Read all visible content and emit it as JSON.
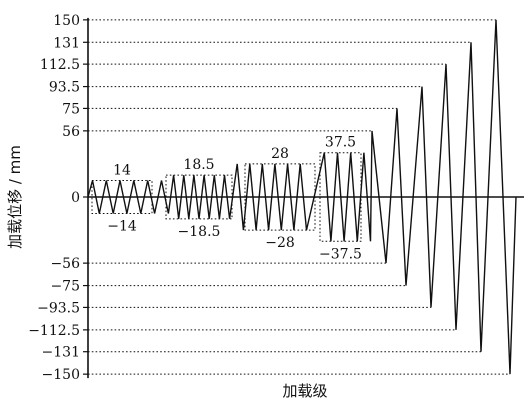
{
  "chart_data": {
    "type": "line",
    "title": "",
    "xlabel": "加载级",
    "ylabel": "加载位移 / mm",
    "ylim": [
      -150,
      150
    ],
    "y_ticks": [
      {
        "value": 150,
        "label": "150"
      },
      {
        "value": 131,
        "label": "131"
      },
      {
        "value": 112.5,
        "label": "112.5"
      },
      {
        "value": 93.5,
        "label": "93.5"
      },
      {
        "value": 75,
        "label": "75"
      },
      {
        "value": 56,
        "label": "56"
      },
      {
        "value": 0,
        "label": "0"
      },
      {
        "value": -56,
        "label": "−56"
      },
      {
        "value": -75,
        "label": "−75"
      },
      {
        "value": -93.5,
        "label": "−93.5"
      },
      {
        "value": -112.5,
        "label": "−112.5"
      },
      {
        "value": -131,
        "label": "−131"
      },
      {
        "value": -150,
        "label": "−150"
      }
    ],
    "stages": [
      {
        "amplitude": 14,
        "cycles": 6,
        "label_pos": "14",
        "label_neg": "−14",
        "boxed": true
      },
      {
        "amplitude": 18.5,
        "cycles": 6,
        "label_pos": "18.5",
        "label_neg": "−18.5",
        "boxed": true
      },
      {
        "amplitude": 28,
        "cycles": 6,
        "label_pos": "28",
        "label_neg": "−28",
        "boxed": true
      },
      {
        "amplitude": 37.5,
        "cycles": 4,
        "label_pos": "37.5",
        "label_neg": "−37.5",
        "boxed": true
      },
      {
        "amplitude": 56,
        "cycles": 1,
        "boxed": false
      },
      {
        "amplitude": 75,
        "cycles": 1,
        "boxed": false
      },
      {
        "amplitude": 93.5,
        "cycles": 1,
        "boxed": false
      },
      {
        "amplitude": 112.5,
        "cycles": 1,
        "boxed": false
      },
      {
        "amplitude": 131,
        "cycles": 1,
        "boxed": false
      },
      {
        "amplitude": 150,
        "cycles": 1,
        "boxed": false
      }
    ],
    "grid": false,
    "legend": "none"
  }
}
